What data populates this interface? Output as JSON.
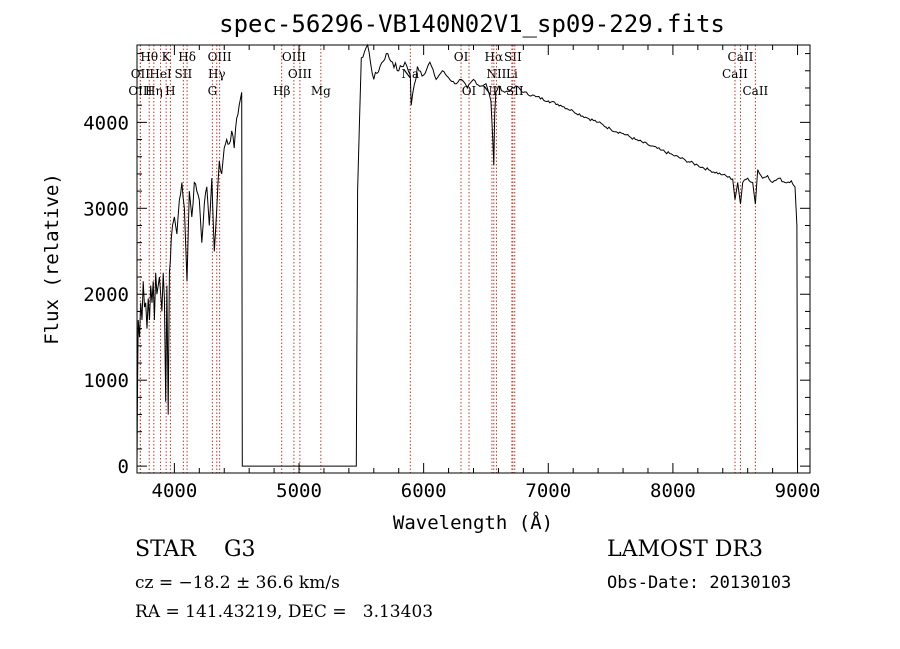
{
  "chart_data": {
    "type": "line",
    "title": "spec-56296-VB140N02V1_sp09-229.fits",
    "xlabel": "Wavelength (Å)",
    "ylabel": "Flux (relative)",
    "xlim": [
      3700,
      9100
    ],
    "ylim": [
      -80,
      4900
    ],
    "xticks": [
      4000,
      5000,
      6000,
      7000,
      8000,
      9000
    ],
    "yticks": [
      0,
      1000,
      2000,
      3000,
      4000
    ],
    "gap": [
      4545,
      5460
    ],
    "series": [
      {
        "name": "flux",
        "x": [
          3700,
          3705,
          3710,
          3720,
          3730,
          3740,
          3750,
          3760,
          3770,
          3780,
          3790,
          3800,
          3810,
          3820,
          3830,
          3840,
          3850,
          3860,
          3870,
          3880,
          3890,
          3900,
          3910,
          3920,
          3930,
          3940,
          3950,
          3960,
          3968,
          3975,
          3985,
          4000,
          4020,
          4040,
          4060,
          4080,
          4101,
          4120,
          4140,
          4160,
          4180,
          4200,
          4220,
          4240,
          4260,
          4280,
          4300,
          4320,
          4340,
          4360,
          4380,
          4400,
          4420,
          4440,
          4460,
          4480,
          4500,
          4520,
          4540,
          4545,
          5460,
          5470,
          5500,
          5550,
          5600,
          5650,
          5700,
          5750,
          5800,
          5850,
          5893,
          5900,
          5950,
          6000,
          6050,
          6100,
          6150,
          6200,
          6250,
          6300,
          6350,
          6400,
          6450,
          6500,
          6540,
          6555,
          6563,
          6570,
          6580,
          6600,
          6650,
          6700,
          6750,
          6800,
          6900,
          7000,
          7100,
          7200,
          7300,
          7400,
          7500,
          7600,
          7700,
          7800,
          7900,
          8000,
          8100,
          8200,
          8300,
          8400,
          8480,
          8498,
          8520,
          8542,
          8560,
          8600,
          8640,
          8662,
          8680,
          8720,
          8760,
          8800,
          8850,
          8900,
          8950,
          8980,
          8995,
          9000
        ],
        "values": [
          0,
          1000,
          1700,
          1500,
          1900,
          1700,
          2150,
          1850,
          1900,
          1600,
          1950,
          1700,
          2100,
          1900,
          2150,
          1700,
          2250,
          2000,
          2100,
          2200,
          2000,
          1800,
          2250,
          1950,
          750,
          2100,
          600,
          2250,
          2400,
          2650,
          2800,
          2900,
          2700,
          3100,
          3300,
          3000,
          2150,
          3200,
          2900,
          3300,
          3200,
          3100,
          2600,
          3050,
          3250,
          2800,
          3350,
          2500,
          3000,
          3550,
          3400,
          3700,
          3800,
          3750,
          3900,
          3700,
          4050,
          4200,
          4350,
          0,
          0,
          3200,
          4750,
          4900,
          4500,
          4650,
          4800,
          4700,
          4600,
          4700,
          4550,
          4200,
          4650,
          4550,
          4700,
          4500,
          4600,
          4520,
          4450,
          4500,
          4400,
          4500,
          4420,
          4450,
          4250,
          3800,
          3500,
          4100,
          4350,
          4420,
          4350,
          4380,
          4420,
          4350,
          4300,
          4250,
          4200,
          4130,
          4060,
          4000,
          3920,
          3870,
          3800,
          3740,
          3680,
          3620,
          3560,
          3500,
          3440,
          3390,
          3340,
          3100,
          3300,
          3050,
          3300,
          3350,
          3300,
          3050,
          3450,
          3350,
          3380,
          3300,
          3350,
          3300,
          3320,
          3250,
          2800,
          0
        ]
      }
    ],
    "line_markers": [
      {
        "label": "Hθ",
        "x": 3798,
        "row": 1
      },
      {
        "label": "OII",
        "x": 3727,
        "row": 2
      },
      {
        "label": "OIII",
        "x": 3727,
        "row": 3
      },
      {
        "label": "Hη",
        "x": 3835,
        "row": 3
      },
      {
        "label": "K",
        "x": 3934,
        "row": 1
      },
      {
        "label": "HeI",
        "x": 3889,
        "row": 2
      },
      {
        "label": "H",
        "x": 3968,
        "row": 3
      },
      {
        "label": "Hδ",
        "x": 4102,
        "row": 1
      },
      {
        "label": "SII",
        "x": 4072,
        "row": 2
      },
      {
        "label": "OIII",
        "x": 4363,
        "row": 1
      },
      {
        "label": "Hγ",
        "x": 4340,
        "row": 2
      },
      {
        "label": "G",
        "x": 4305,
        "row": 3
      },
      {
        "label": "Hβ",
        "x": 4861,
        "row": 3
      },
      {
        "label": "OIII",
        "x": 4959,
        "row": 1
      },
      {
        "label": "OIII",
        "x": 5007,
        "row": 2
      },
      {
        "label": "Mg",
        "x": 5175,
        "row": 3
      },
      {
        "label": "Na",
        "x": 5893,
        "row": 2
      },
      {
        "label": "OI",
        "x": 6300,
        "row": 1
      },
      {
        "label": "OI",
        "x": 6364,
        "row": 3
      },
      {
        "label": "Hα",
        "x": 6563,
        "row": 1
      },
      {
        "label": "SII",
        "x": 6716,
        "row": 1
      },
      {
        "label": "NII",
        "x": 6584,
        "row": 2
      },
      {
        "label": "Li",
        "x": 6708,
        "row": 2
      },
      {
        "label": "NII",
        "x": 6548,
        "row": 3
      },
      {
        "label": "SII",
        "x": 6731,
        "row": 3
      },
      {
        "label": "CaII",
        "x": 8542,
        "row": 1
      },
      {
        "label": "CaII",
        "x": 8498,
        "row": 2
      },
      {
        "label": "CaII",
        "x": 8662,
        "row": 3
      }
    ]
  },
  "info": {
    "class_label": "STAR",
    "subclass": "G3",
    "survey": "LAMOST DR3",
    "redshift_line": "cz = −18.2 ± 36.6 km/s",
    "obs_date": "Obs-Date: 20130103",
    "coords": "RA = 141.43219, DEC =   3.13403"
  }
}
